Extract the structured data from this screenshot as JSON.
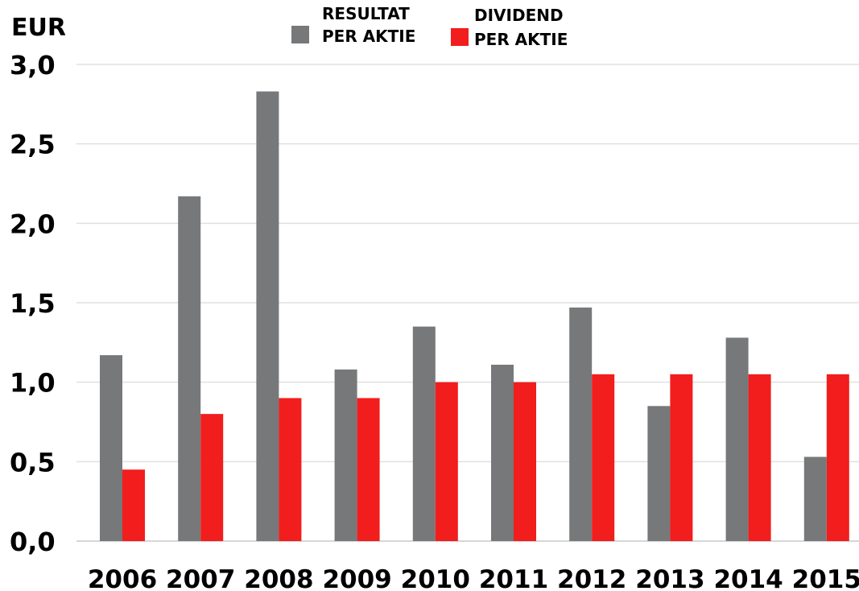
{
  "chart_data": {
    "type": "bar",
    "unit_label": "EUR",
    "categories": [
      "2006",
      "2007",
      "2008",
      "2009",
      "2010",
      "2011",
      "2012",
      "2013",
      "2014",
      "2015"
    ],
    "series": [
      {
        "name_lines": [
          "RESULTAT",
          "PER AKTIE"
        ],
        "color": "#76787a",
        "values": [
          1.17,
          2.17,
          2.83,
          1.08,
          1.35,
          1.11,
          1.47,
          0.85,
          1.28,
          0.53
        ]
      },
      {
        "name_lines": [
          "DIVIDEND",
          "PER AKTIE"
        ],
        "color": "#f21d1d",
        "values": [
          0.45,
          0.8,
          0.9,
          0.9,
          1.0,
          1.0,
          1.05,
          1.05,
          1.05,
          1.05
        ]
      }
    ],
    "ylim": [
      0,
      3.0
    ],
    "yticks": [
      "0,0",
      "0,5",
      "1,0",
      "1,5",
      "2,0",
      "2,5",
      "3,0"
    ],
    "grid": true,
    "legend_position": "top"
  }
}
